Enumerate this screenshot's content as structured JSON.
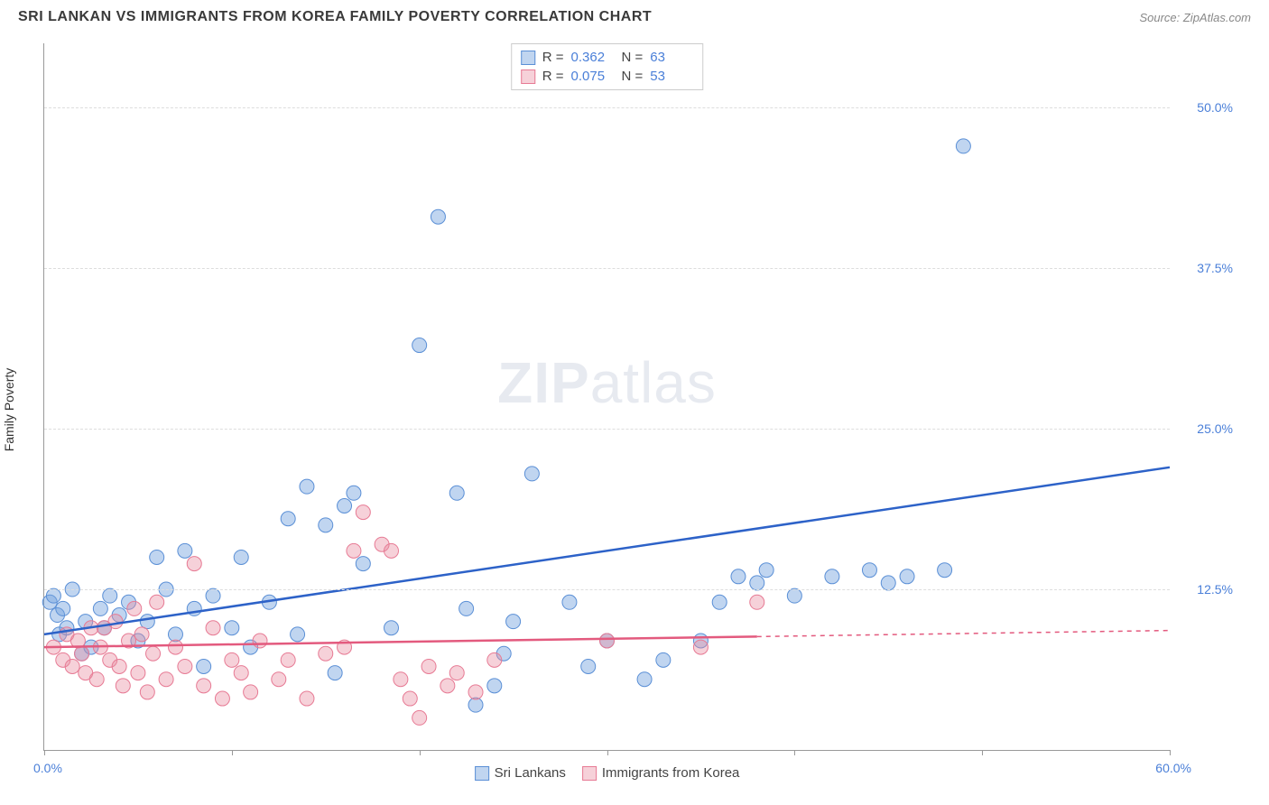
{
  "title": "SRI LANKAN VS IMMIGRANTS FROM KOREA FAMILY POVERTY CORRELATION CHART",
  "source": "Source: ZipAtlas.com",
  "ylabel": "Family Poverty",
  "watermark": {
    "bold": "ZIP",
    "light": "atlas"
  },
  "chart": {
    "type": "scatter",
    "xlim": [
      0,
      60
    ],
    "ylim": [
      0,
      55
    ],
    "xticks_pct": [
      0,
      10,
      20,
      30,
      40,
      50,
      60
    ],
    "ytick_labels": [
      {
        "value": 12.5,
        "label": "12.5%"
      },
      {
        "value": 25.0,
        "label": "25.0%"
      },
      {
        "value": 37.5,
        "label": "37.5%"
      },
      {
        "value": 50.0,
        "label": "50.0%"
      }
    ],
    "xlimit_labels": {
      "min": "0.0%",
      "max": "60.0%"
    },
    "background_color": "#ffffff",
    "grid_color": "#dddddd",
    "axis_color": "#999999",
    "point_radius": 8,
    "series": [
      {
        "name": "Sri Lankans",
        "color_fill": "rgba(116,162,222,0.45)",
        "color_stroke": "#5a8fd6",
        "r_value": "0.362",
        "n_value": "63",
        "regression": {
          "x1": 0,
          "y1": 9.0,
          "x2": 60,
          "y2": 22.0,
          "solid_to_x": 60
        },
        "line_color": "#2d62c8",
        "line_width": 2.5,
        "points": [
          [
            0.3,
            11.5
          ],
          [
            0.5,
            12.0
          ],
          [
            0.7,
            10.5
          ],
          [
            0.8,
            9.0
          ],
          [
            1.0,
            11.0
          ],
          [
            1.2,
            9.5
          ],
          [
            1.5,
            12.5
          ],
          [
            2.0,
            7.5
          ],
          [
            2.2,
            10.0
          ],
          [
            2.5,
            8.0
          ],
          [
            3.0,
            11.0
          ],
          [
            3.2,
            9.5
          ],
          [
            3.5,
            12.0
          ],
          [
            4.0,
            10.5
          ],
          [
            4.5,
            11.5
          ],
          [
            5.0,
            8.5
          ],
          [
            5.5,
            10.0
          ],
          [
            6.0,
            15.0
          ],
          [
            6.5,
            12.5
          ],
          [
            7.0,
            9.0
          ],
          [
            7.5,
            15.5
          ],
          [
            8.0,
            11.0
          ],
          [
            8.5,
            6.5
          ],
          [
            9.0,
            12.0
          ],
          [
            10.0,
            9.5
          ],
          [
            10.5,
            15.0
          ],
          [
            11.0,
            8.0
          ],
          [
            12.0,
            11.5
          ],
          [
            13.0,
            18.0
          ],
          [
            13.5,
            9.0
          ],
          [
            14.0,
            20.5
          ],
          [
            15.0,
            17.5
          ],
          [
            15.5,
            6.0
          ],
          [
            16.0,
            19.0
          ],
          [
            16.5,
            20.0
          ],
          [
            17.0,
            14.5
          ],
          [
            18.5,
            9.5
          ],
          [
            20.0,
            31.5
          ],
          [
            21.0,
            41.5
          ],
          [
            22.0,
            20.0
          ],
          [
            22.5,
            11.0
          ],
          [
            23.0,
            3.5
          ],
          [
            24.0,
            5.0
          ],
          [
            24.5,
            7.5
          ],
          [
            25.0,
            10.0
          ],
          [
            26.0,
            21.5
          ],
          [
            28.0,
            11.5
          ],
          [
            29.0,
            6.5
          ],
          [
            30.0,
            8.5
          ],
          [
            32.0,
            5.5
          ],
          [
            33.0,
            7.0
          ],
          [
            35.0,
            8.5
          ],
          [
            36.0,
            11.5
          ],
          [
            37.0,
            13.5
          ],
          [
            38.0,
            13.0
          ],
          [
            38.5,
            14.0
          ],
          [
            40.0,
            12.0
          ],
          [
            42.0,
            13.5
          ],
          [
            44.0,
            14.0
          ],
          [
            45.0,
            13.0
          ],
          [
            49.0,
            47.0
          ],
          [
            48.0,
            14.0
          ],
          [
            46.0,
            13.5
          ]
        ]
      },
      {
        "name": "Immigrants from Korea",
        "color_fill": "rgba(233,140,160,0.40)",
        "color_stroke": "#e77a94",
        "r_value": "0.075",
        "n_value": "53",
        "regression": {
          "x1": 0,
          "y1": 8.0,
          "x2": 60,
          "y2": 9.3,
          "solid_to_x": 38
        },
        "line_color": "#e35a7e",
        "line_width": 2.5,
        "points": [
          [
            0.5,
            8.0
          ],
          [
            1.0,
            7.0
          ],
          [
            1.2,
            9.0
          ],
          [
            1.5,
            6.5
          ],
          [
            1.8,
            8.5
          ],
          [
            2.0,
            7.5
          ],
          [
            2.2,
            6.0
          ],
          [
            2.5,
            9.5
          ],
          [
            2.8,
            5.5
          ],
          [
            3.0,
            8.0
          ],
          [
            3.2,
            9.5
          ],
          [
            3.5,
            7.0
          ],
          [
            3.8,
            10.0
          ],
          [
            4.0,
            6.5
          ],
          [
            4.2,
            5.0
          ],
          [
            4.5,
            8.5
          ],
          [
            4.8,
            11.0
          ],
          [
            5.0,
            6.0
          ],
          [
            5.2,
            9.0
          ],
          [
            5.5,
            4.5
          ],
          [
            5.8,
            7.5
          ],
          [
            6.0,
            11.5
          ],
          [
            6.5,
            5.5
          ],
          [
            7.0,
            8.0
          ],
          [
            7.5,
            6.5
          ],
          [
            8.0,
            14.5
          ],
          [
            8.5,
            5.0
          ],
          [
            9.0,
            9.5
          ],
          [
            9.5,
            4.0
          ],
          [
            10.0,
            7.0
          ],
          [
            10.5,
            6.0
          ],
          [
            11.0,
            4.5
          ],
          [
            11.5,
            8.5
          ],
          [
            12.5,
            5.5
          ],
          [
            13.0,
            7.0
          ],
          [
            14.0,
            4.0
          ],
          [
            15.0,
            7.5
          ],
          [
            16.0,
            8.0
          ],
          [
            16.5,
            15.5
          ],
          [
            17.0,
            18.5
          ],
          [
            18.0,
            16.0
          ],
          [
            18.5,
            15.5
          ],
          [
            19.0,
            5.5
          ],
          [
            19.5,
            4.0
          ],
          [
            20.0,
            2.5
          ],
          [
            20.5,
            6.5
          ],
          [
            21.5,
            5.0
          ],
          [
            22.0,
            6.0
          ],
          [
            23.0,
            4.5
          ],
          [
            24.0,
            7.0
          ],
          [
            30.0,
            8.5
          ],
          [
            35.0,
            8.0
          ],
          [
            38.0,
            11.5
          ]
        ]
      }
    ]
  }
}
